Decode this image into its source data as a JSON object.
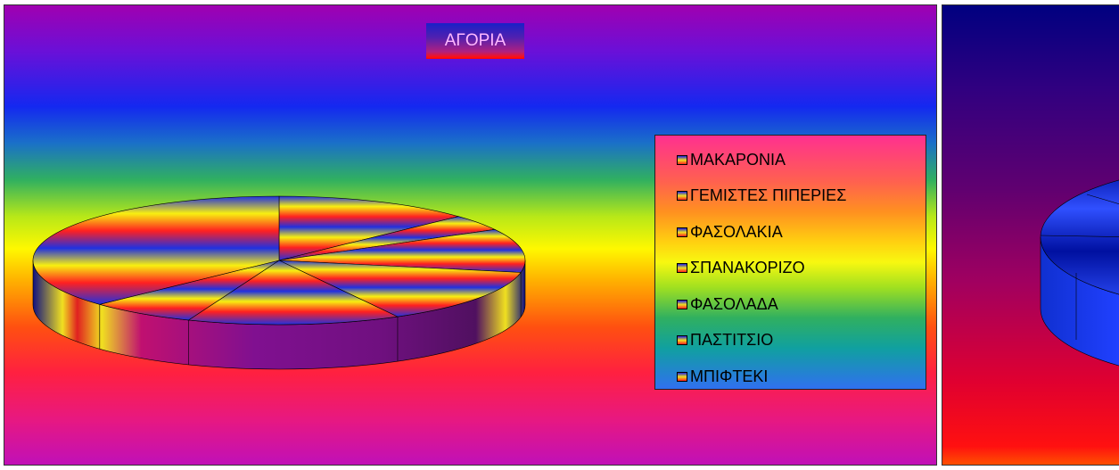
{
  "chart_data": {
    "type": "pie",
    "title": "ΑΓΟΡΙΑ",
    "categories": [
      "ΜΑΚΑΡΟΝΙΑ",
      "ΓΕΜΙΣΤΕΣ ΠΙΠΕΡΙΕΣ",
      "ΦΑΣΟΛΑΚΙΑ",
      "ΣΠΑΝΑΚΟΡΙΖΟ",
      "ΦΑΣΟΛΑΔΑ",
      "ΠΑΣΤΙΤΣΙΟ",
      "ΜΠΙΦΤΕΚΙ"
    ],
    "values": [
      13,
      4,
      11,
      14,
      14,
      7,
      37
    ],
    "legend_position": "right",
    "style": "3d-pie",
    "colors": {
      "background_top": "#a000b0",
      "background_mid": "#fff800",
      "background_bottom": "#c010b8",
      "slice_top": "#2030e0",
      "slice_mid": "#f8f010",
      "slice_bottom": "#ff2020",
      "side": "#8010a0"
    }
  }
}
